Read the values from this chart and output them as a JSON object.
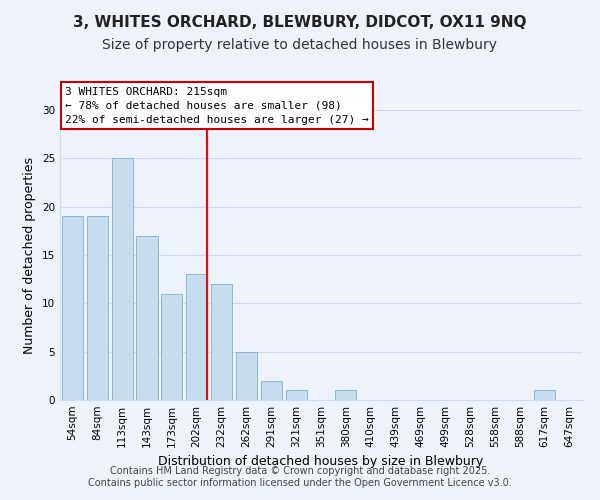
{
  "title": "3, WHITES ORCHARD, BLEWBURY, DIDCOT, OX11 9NQ",
  "subtitle": "Size of property relative to detached houses in Blewbury",
  "xlabel": "Distribution of detached houses by size in Blewbury",
  "ylabel": "Number of detached properties",
  "bar_labels": [
    "54sqm",
    "84sqm",
    "113sqm",
    "143sqm",
    "173sqm",
    "202sqm",
    "232sqm",
    "262sqm",
    "291sqm",
    "321sqm",
    "351sqm",
    "380sqm",
    "410sqm",
    "439sqm",
    "469sqm",
    "499sqm",
    "528sqm",
    "558sqm",
    "588sqm",
    "617sqm",
    "647sqm"
  ],
  "bar_values": [
    19,
    19,
    25,
    17,
    11,
    13,
    12,
    5,
    2,
    1,
    0,
    1,
    0,
    0,
    0,
    0,
    0,
    0,
    0,
    1,
    0
  ],
  "bar_color": "#c5ddef",
  "bar_edge_color": "#8ab8d4",
  "ylim": [
    0,
    30
  ],
  "yticks": [
    0,
    5,
    10,
    15,
    20,
    25,
    30
  ],
  "red_line_x": 5.43,
  "annotation_title": "3 WHITES ORCHARD: 215sqm",
  "annotation_line1": "← 78% of detached houses are smaller (98)",
  "annotation_line2": "22% of semi-detached houses are larger (27) →",
  "footer1": "Contains HM Land Registry data © Crown copyright and database right 2025.",
  "footer2": "Contains public sector information licensed under the Open Government Licence v3.0.",
  "background_color": "#eef2fb",
  "grid_color": "#d0daf0",
  "title_fontsize": 11,
  "subtitle_fontsize": 10,
  "axis_label_fontsize": 9,
  "tick_fontsize": 7.5,
  "annotation_fontsize": 8,
  "footer_fontsize": 7
}
